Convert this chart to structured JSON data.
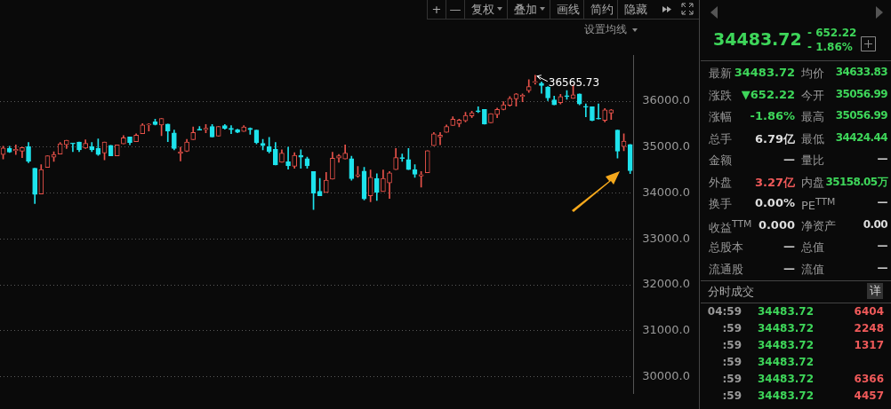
{
  "chart_data": [
    {
      "type": "candlestick",
      "categories": [
        null,
        null,
        null,
        null,
        null,
        null,
        null,
        null,
        null,
        null,
        null,
        null,
        null,
        null,
        null,
        null,
        null,
        null,
        null,
        null,
        null,
        null,
        null,
        null,
        null,
        null,
        null,
        null,
        null,
        null,
        null,
        null,
        null,
        null,
        null,
        null,
        null,
        null,
        null,
        null,
        null,
        null,
        null,
        null,
        null,
        null,
        null,
        null,
        null,
        null,
        null,
        null,
        null,
        null,
        null,
        null,
        null,
        null,
        null,
        null,
        null,
        null,
        null,
        null,
        null,
        null,
        null,
        null,
        null,
        null,
        null,
        null,
        null,
        null,
        null,
        null,
        null,
        null,
        null,
        null,
        null,
        null,
        null,
        null,
        null,
        null,
        null,
        null,
        null,
        null,
        null,
        null,
        null,
        null,
        null,
        null,
        null,
        null,
        null,
        null
      ],
      "ohlc": [
        [
          34840,
          35020,
          34740,
          34980
        ],
        [
          34970,
          35020,
          34880,
          34890
        ],
        [
          34920,
          35050,
          34840,
          34950
        ],
        [
          34910,
          35000,
          34770,
          34990
        ],
        [
          35010,
          35100,
          34660,
          34690
        ],
        [
          34540,
          34540,
          33770,
          33970
        ],
        [
          33980,
          34620,
          33980,
          34510
        ],
        [
          34560,
          34810,
          34560,
          34810
        ],
        [
          34780,
          34900,
          34690,
          34840
        ],
        [
          34850,
          35100,
          34850,
          35070
        ],
        [
          35050,
          35150,
          34970,
          35150
        ],
        [
          35080,
          35080,
          34900,
          35070
        ],
        [
          35110,
          35110,
          34900,
          34940
        ],
        [
          34980,
          35160,
          34970,
          35080
        ],
        [
          35010,
          35100,
          34900,
          34940
        ],
        [
          34970,
          35180,
          34820,
          34840
        ],
        [
          34870,
          35110,
          34720,
          35110
        ],
        [
          35040,
          35040,
          34810,
          34810
        ],
        [
          34810,
          35050,
          34810,
          35050
        ],
        [
          35070,
          35250,
          35070,
          35200
        ],
        [
          35220,
          35220,
          35050,
          35100
        ],
        [
          35120,
          35290,
          35120,
          35260
        ],
        [
          35290,
          35510,
          35290,
          35480
        ],
        [
          35480,
          35510,
          35350,
          35490
        ],
        [
          35550,
          35610,
          35480,
          35490
        ],
        [
          35480,
          35620,
          35250,
          35620
        ],
        [
          35500,
          35500,
          35120,
          35350
        ],
        [
          35310,
          35370,
          34940,
          34970
        ],
        [
          34860,
          35000,
          34700,
          34900
        ],
        [
          34910,
          35170,
          34900,
          35110
        ],
        [
          35160,
          35440,
          35160,
          35320
        ],
        [
          35380,
          35450,
          35370,
          35370
        ],
        [
          35380,
          35490,
          35310,
          35410
        ],
        [
          35450,
          35490,
          35220,
          35220
        ],
        [
          35240,
          35450,
          35240,
          35450
        ],
        [
          35470,
          35490,
          35390,
          35410
        ],
        [
          35410,
          35470,
          35290,
          35380
        ],
        [
          35380,
          35390,
          35310,
          35320
        ],
        [
          35340,
          35470,
          35340,
          35440
        ],
        [
          35410,
          35420,
          35280,
          35380
        ],
        [
          35370,
          35370,
          35070,
          35100
        ],
        [
          35080,
          35170,
          34940,
          35030
        ],
        [
          35010,
          35210,
          34870,
          34900
        ],
        [
          34950,
          35100,
          34610,
          34610
        ],
        [
          34670,
          34940,
          34670,
          34870
        ],
        [
          34680,
          35000,
          34520,
          34590
        ],
        [
          34580,
          34880,
          34540,
          34820
        ],
        [
          34820,
          34940,
          34540,
          34780
        ],
        [
          34750,
          34780,
          34540,
          34590
        ],
        [
          34470,
          34470,
          33640,
          34000
        ],
        [
          34040,
          34320,
          33940,
          33940
        ],
        [
          34010,
          34450,
          34010,
          34280
        ],
        [
          34300,
          34890,
          34300,
          34760
        ],
        [
          34760,
          34840,
          34670,
          34810
        ],
        [
          34740,
          35050,
          34740,
          34870
        ],
        [
          34750,
          34800,
          34280,
          34310
        ],
        [
          34370,
          34580,
          34340,
          34400
        ],
        [
          34480,
          34560,
          33850,
          33870
        ],
        [
          33940,
          34500,
          33810,
          34340
        ],
        [
          34320,
          34420,
          33840,
          34010
        ],
        [
          34030,
          34500,
          34030,
          34320
        ],
        [
          34220,
          34470,
          33880,
          34440
        ],
        [
          34510,
          34970,
          34510,
          34770
        ],
        [
          34770,
          34850,
          34690,
          34750
        ],
        [
          34730,
          34970,
          34510,
          34510
        ],
        [
          34510,
          34620,
          34340,
          34410
        ],
        [
          34370,
          34470,
          34130,
          34400
        ],
        [
          34440,
          34920,
          34440,
          34920
        ],
        [
          35030,
          35320,
          35030,
          35290
        ],
        [
          35220,
          35320,
          35050,
          35260
        ],
        [
          35320,
          35480,
          35320,
          35450
        ],
        [
          35470,
          35660,
          35470,
          35610
        ],
        [
          35510,
          35610,
          35440,
          35590
        ],
        [
          35570,
          35760,
          35550,
          35690
        ],
        [
          35680,
          35780,
          35640,
          35750
        ],
        [
          35790,
          35880,
          35750,
          35770
        ],
        [
          35820,
          35820,
          35500,
          35500
        ],
        [
          35530,
          35730,
          35530,
          35730
        ],
        [
          35710,
          35850,
          35640,
          35820
        ],
        [
          35820,
          35990,
          35810,
          35920
        ],
        [
          35910,
          36100,
          35890,
          36060
        ],
        [
          36050,
          36170,
          35890,
          36160
        ],
        [
          36100,
          36160,
          35990,
          36130
        ],
        [
          36230,
          36470,
          36190,
          36320
        ],
        [
          36410,
          36565.73,
          36370,
          36420
        ],
        [
          36390,
          36420,
          36170,
          36340
        ],
        [
          36310,
          36320,
          36010,
          36070
        ],
        [
          36030,
          36110,
          35920,
          35920
        ],
        [
          35970,
          36150,
          35940,
          36100
        ],
        [
          36120,
          36230,
          36040,
          36100
        ],
        [
          36060,
          36350,
          36060,
          36140
        ],
        [
          36160,
          36160,
          35920,
          35940
        ],
        [
          35890,
          35940,
          35660,
          35870
        ],
        [
          35880,
          35880,
          35570,
          35580
        ],
        [
          35620,
          35940,
          35610,
          35610
        ],
        [
          35580,
          35840,
          35550,
          35810
        ],
        [
          35740,
          35820,
          35600,
          35810
        ],
        [
          35370,
          35370,
          34760,
          34910
        ],
        [
          35010,
          35290,
          34920,
          35130
        ],
        [
          35056.99,
          35056.99,
          34424.44,
          34483.72
        ]
      ],
      "ylim": [
        29640,
        36990
      ],
      "yticks": [
        {
          "value": 30000,
          "label": "30000.0"
        },
        {
          "value": 31000,
          "label": "31000.0"
        },
        {
          "value": 32000,
          "label": "32000.0"
        },
        {
          "value": 33000,
          "label": "33000.0"
        },
        {
          "value": 34000,
          "label": "34000.0"
        },
        {
          "value": 35000,
          "label": "35000.0"
        },
        {
          "value": 36000,
          "label": "36000.0"
        }
      ],
      "grid": "y",
      "tick_labels": "y",
      "annotations": [
        "36565.73",
        "设置均线",
        "+",
        "—",
        "复权",
        "叠加",
        "画线",
        "简约",
        "隐藏"
      ]
    },
    {
      "type": "other",
      "annotations": [
        "34483.72",
        "- 652.22",
        "- 1.86%",
        "最新",
        "34483.72",
        "均价",
        "34633.83",
        "涨跌",
        "▼652.22",
        "今开",
        "35056.99",
        "涨幅",
        "-1.86%",
        "最高",
        "35056.99",
        "总手",
        "6.79亿",
        "最低",
        "34424.44",
        "金额",
        "—",
        "量比",
        "—",
        "外盘",
        "3.27亿",
        "内盘",
        "35158.05万",
        "换手",
        "0.00%",
        "PE$^{TTM}$",
        "—",
        "收益$^{TTM}$",
        "0.000",
        "净资产",
        "0.00",
        "总股本",
        "—",
        "总值",
        "—",
        "流通股",
        "—",
        "流值",
        "—",
        "分时成交",
        "详",
        "04:59",
        "34483.72",
        "6404",
        ":59",
        "34483.72",
        "2248",
        ":59",
        "34483.72",
        "1317",
        ":59",
        "34483.72",
        null,
        ":59",
        "34483.72",
        "6366",
        ":59",
        "34483.72",
        "4457"
      ]
    }
  ]
}
